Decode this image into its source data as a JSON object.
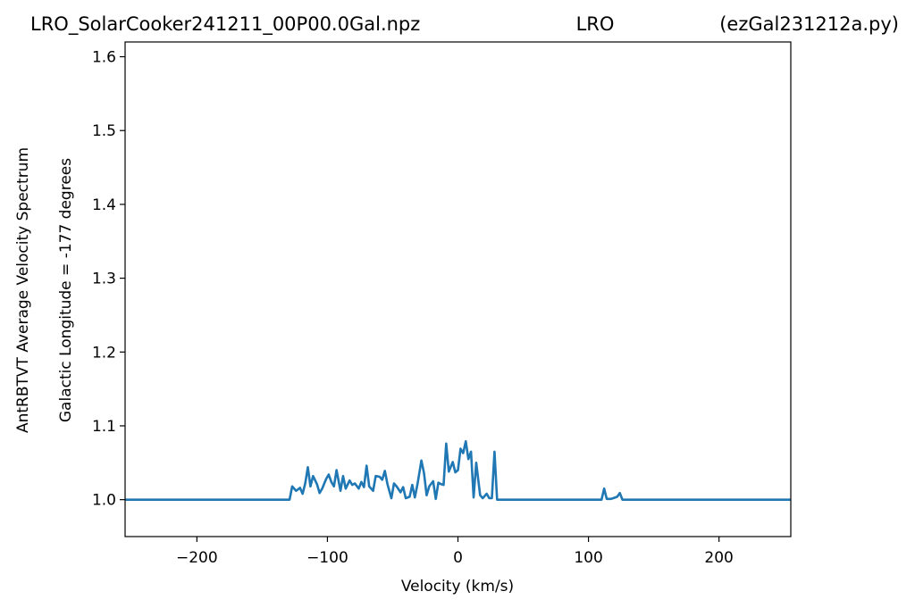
{
  "chart_data": {
    "type": "line",
    "title_left": "LRO_SolarCooker241211_00P00.0Gal.npz",
    "title_center": "LRO",
    "title_right": "(ezGal231212a.py)",
    "xlabel": "Velocity (km/s)",
    "ylabel_outer": "AntRBTVT Average Velocity Spectrum",
    "ylabel_inner": "Galactic Longitude = -177 degrees",
    "xlim": [
      -255,
      255
    ],
    "ylim": [
      0.95,
      1.62
    ],
    "x_ticks": [
      -200,
      -100,
      0,
      100,
      200
    ],
    "x_tick_labels": [
      "−200",
      "−100",
      "0",
      "100",
      "200"
    ],
    "y_ticks": [
      1.0,
      1.1,
      1.2,
      1.3,
      1.4,
      1.5,
      1.6
    ],
    "y_tick_labels": [
      "1.0",
      "1.1",
      "1.2",
      "1.3",
      "1.4",
      "1.5",
      "1.6"
    ],
    "grid": false,
    "series": [
      {
        "color": "#1f77b4",
        "x": [
          -255,
          -129,
          -127,
          -124,
          -121,
          -119,
          -117,
          -115,
          -113,
          -111,
          -108,
          -106,
          -104,
          -101,
          -99,
          -97,
          -95,
          -93,
          -90,
          -88,
          -86,
          -83,
          -81,
          -79,
          -76,
          -74,
          -72,
          -70,
          -68,
          -65,
          -63,
          -60,
          -58,
          -56,
          -54,
          -51,
          -49,
          -47,
          -44,
          -42,
          -40,
          -37,
          -35,
          -33,
          -31,
          -28,
          -26,
          -24,
          -22,
          -19,
          -17,
          -15,
          -13,
          -11,
          -9,
          -7,
          -4,
          -2,
          0,
          2,
          4,
          6,
          8,
          10,
          12,
          14,
          17,
          19,
          22,
          24,
          26,
          28,
          30,
          32,
          110,
          112,
          114,
          117,
          119,
          122,
          124,
          126,
          128,
          255
        ],
        "values": [
          1.0,
          1.0,
          1.018,
          1.012,
          1.016,
          1.008,
          1.022,
          1.044,
          1.018,
          1.032,
          1.021,
          1.009,
          1.015,
          1.028,
          1.034,
          1.024,
          1.018,
          1.04,
          1.012,
          1.032,
          1.015,
          1.026,
          1.02,
          1.022,
          1.015,
          1.024,
          1.017,
          1.046,
          1.018,
          1.012,
          1.032,
          1.031,
          1.027,
          1.039,
          1.021,
          1.002,
          1.022,
          1.018,
          1.01,
          1.017,
          1.002,
          1.004,
          1.02,
          1.003,
          1.021,
          1.053,
          1.036,
          1.006,
          1.018,
          1.025,
          1.001,
          1.023,
          1.021,
          1.02,
          1.076,
          1.038,
          1.051,
          1.037,
          1.04,
          1.069,
          1.063,
          1.079,
          1.055,
          1.065,
          1.003,
          1.05,
          1.006,
          1.002,
          1.008,
          1.002,
          1.002,
          1.065,
          1.0,
          1.0,
          1.0,
          1.015,
          1.001,
          1.001,
          1.002,
          1.004,
          1.009,
          1.0,
          1.0,
          1.0
        ]
      }
    ]
  }
}
